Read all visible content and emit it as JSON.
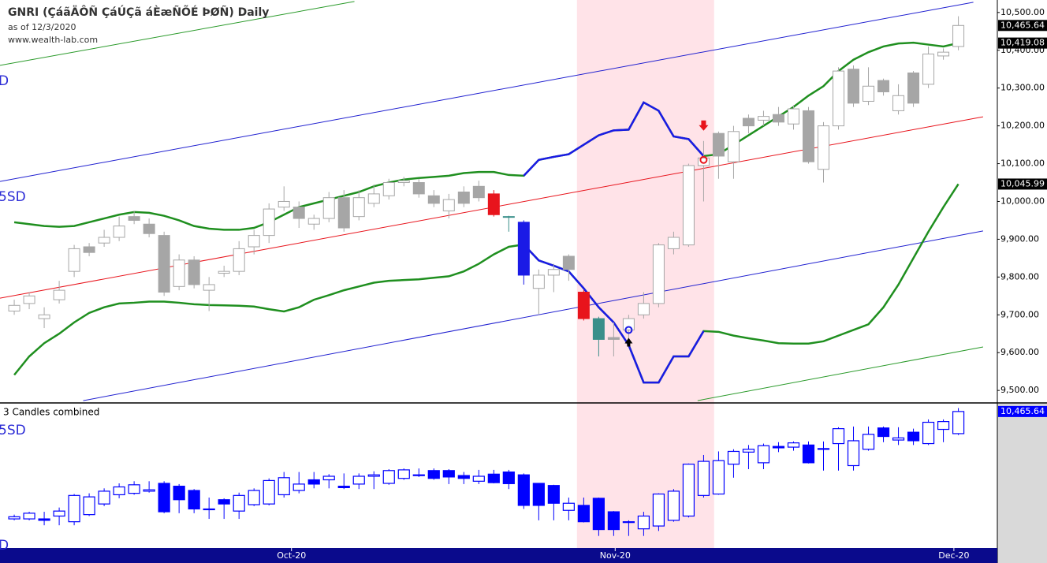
{
  "chart_data": {
    "type": "candlestick",
    "title": "GNRI (ÇáãÄÔÑ ÇáÚÇã áÈæÑÕÉ ÞØÑ) Daily",
    "subtitle": "as of 12/3/2020",
    "source": "www.wealth-lab.com",
    "channel_labels": [
      "D",
      "5SD"
    ],
    "xlim": [
      -0.95,
      65.6
    ],
    "xticks": [
      {
        "value": 18.5,
        "label": "Oct-20"
      },
      {
        "value": 40.1,
        "label": "Nov-20"
      },
      {
        "value": 62.7,
        "label": "Dec-20"
      }
    ],
    "ylim": [
      9469,
      10533
    ],
    "yticks": [
      {
        "value": 9500,
        "label": "9,500.00"
      },
      {
        "value": 9600,
        "label": "9,600.00"
      },
      {
        "value": 9700,
        "label": "9,700.00"
      },
      {
        "value": 9800,
        "label": "9,800.00"
      },
      {
        "value": 9900,
        "label": "9,900.00"
      },
      {
        "value": 10000,
        "label": "10,000.00"
      },
      {
        "value": 10100,
        "label": "10,100.00"
      },
      {
        "value": 10200,
        "label": "10,200.00"
      },
      {
        "value": 10300,
        "label": "10,300.00"
      },
      {
        "value": 10400,
        "label": "10,400.00"
      },
      {
        "value": 10500,
        "label": "10,500.00"
      }
    ],
    "shade": [
      37.55,
      46.7
    ],
    "shade_color": "#ffe3e8",
    "up_color": "#ffffff",
    "down_color": "#a6a6a6",
    "open": [
      9710,
      9730,
      9690,
      9740,
      9815,
      9880,
      9890,
      9905,
      9960,
      9940,
      9910,
      9775,
      9845,
      9765,
      9810,
      9815,
      9880,
      9910,
      9985,
      9985,
      9940,
      9955,
      10010,
      9960,
      9995,
      10015,
      10050,
      10050,
      10015,
      9975,
      10025,
      10040,
      10020,
      9960,
      9945,
      9770,
      9805,
      9855,
      9760,
      9690,
      9640,
      9660,
      9700,
      9730,
      9875,
      9885,
      10095,
      10180,
      10105,
      10220,
      10215,
      10230,
      10205,
      10240,
      10085,
      10200,
      10350,
      10265,
      10320,
      10240,
      10340,
      10310,
      10385,
      10410
    ],
    "high": [
      9740,
      9760,
      9720,
      9790,
      9885,
      9890,
      9925,
      9960,
      9975,
      9955,
      9920,
      9860,
      9855,
      9800,
      9830,
      9895,
      9925,
      9995,
      10040,
      10000,
      9965,
      10025,
      10030,
      10030,
      10045,
      10060,
      10065,
      10060,
      10030,
      10020,
      10040,
      10055,
      10030,
      9962,
      9950,
      9820,
      9835,
      9860,
      9765,
      9695,
      9680,
      9700,
      9760,
      9890,
      9920,
      10100,
      10160,
      10185,
      10200,
      10230,
      10240,
      10250,
      10255,
      10250,
      10210,
      10355,
      10360,
      10355,
      10325,
      10310,
      10345,
      10410,
      10405,
      10490
    ],
    "low": [
      9700,
      9715,
      9665,
      9730,
      9800,
      9855,
      9880,
      9895,
      9940,
      9905,
      9750,
      9765,
      9770,
      9710,
      9800,
      9805,
      9860,
      9890,
      9975,
      9930,
      9925,
      9945,
      9920,
      9950,
      9985,
      10005,
      10040,
      10010,
      9985,
      9955,
      9985,
      10000,
      9960,
      9920,
      9780,
      9700,
      9760,
      9790,
      9685,
      9590,
      9590,
      9625,
      9690,
      9720,
      9860,
      9880,
      10000,
      10060,
      10060,
      10180,
      10200,
      10200,
      10190,
      10100,
      10050,
      10190,
      10250,
      10255,
      10280,
      10230,
      10250,
      10300,
      10375,
      10400
    ],
    "close": [
      9725,
      9750,
      9700,
      9765,
      9875,
      9865,
      9905,
      9935,
      9950,
      9915,
      9760,
      9845,
      9780,
      9780,
      9815,
      9875,
      9910,
      9980,
      10000,
      9955,
      9955,
      10010,
      9930,
      10010,
      10020,
      10050,
      10055,
      10020,
      9995,
      10005,
      9995,
      10010,
      9965,
      9958,
      9805,
      9805,
      9820,
      9820,
      9690,
      9635,
      9635,
      9690,
      9730,
      9885,
      9905,
      10095,
      10115,
      10120,
      10185,
      10200,
      10225,
      10210,
      10245,
      10105,
      10200,
      10345,
      10260,
      10305,
      10290,
      10280,
      10260,
      10390,
      10395,
      10465.64
    ],
    "last_label": "10,465.64",
    "highlights": [
      {
        "index": 32,
        "color": "#e8141c"
      },
      {
        "index": 33,
        "color": "#3a8f8a"
      },
      {
        "index": 34,
        "color": "#1a1ae6"
      },
      {
        "index": 38,
        "color": "#e8141c"
      },
      {
        "index": 39,
        "color": "#3a8f8a"
      }
    ],
    "bands": [
      {
        "color": "#1f8f1f",
        "shade_color": "#1a1ae6",
        "value_label": "10,419.08",
        "values": [
          9945,
          9940,
          9935,
          9933,
          9935,
          9945,
          9955,
          9965,
          9972,
          9970,
          9962,
          9950,
          9935,
          9928,
          9925,
          9925,
          9930,
          9945,
          9965,
          9985,
          9995,
          10005,
          10015,
          10025,
          10040,
          10050,
          10058,
          10062,
          10065,
          10068,
          10075,
          10078,
          10078,
          10070,
          10068,
          10110,
          10118,
          10125,
          10150,
          10175,
          10188,
          10190,
          10262,
          10240,
          10172,
          10165,
          10120,
          10125,
          10150,
          10175,
          10200,
          10225,
          10250,
          10280,
          10305,
          10345,
          10375,
          10395,
          10410,
          10418,
          10420,
          10415,
          10410,
          10419.08
        ]
      },
      {
        "color": "#1f8f1f",
        "shade_color": "#1a1ae6",
        "value_label": "10,045.99",
        "values": [
          9541,
          9590,
          9625,
          9650,
          9680,
          9705,
          9720,
          9730,
          9732,
          9735,
          9735,
          9732,
          9728,
          9726,
          9725,
          9724,
          9722,
          9715,
          9709,
          9720,
          9740,
          9752,
          9765,
          9775,
          9785,
          9790,
          9792,
          9794,
          9798,
          9802,
          9815,
          9835,
          9860,
          9880,
          9886,
          9844,
          9830,
          9815,
          9770,
          9720,
          9680,
          9620,
          9521,
          9521,
          9590,
          9590,
          9657,
          9655,
          9645,
          9638,
          9632,
          9625,
          9624,
          9624,
          9630,
          9645,
          9660,
          9675,
          9720,
          9780,
          9850,
          9920,
          9985,
          10045.99
        ]
      }
    ],
    "lines": [
      {
        "color": "#e8141c",
        "from": [
          -0.95,
          9744
        ],
        "to": [
          64.65,
          10224
        ]
      },
      {
        "color": "#2020d0",
        "from": [
          -0.95,
          10053
        ],
        "to": [
          64.0,
          10527
        ]
      },
      {
        "color": "#2020d0",
        "from": [
          4.6,
          9473
        ],
        "to": [
          64.65,
          9922
        ]
      },
      {
        "color": "#2a9a2a",
        "from": [
          -0.95,
          10360
        ],
        "to": [
          22.7,
          10529
        ]
      },
      {
        "color": "#2a9a2a",
        "from": [
          45.6,
          9473
        ],
        "to": [
          64.65,
          9615
        ]
      }
    ],
    "signals": [
      {
        "kind": "sell",
        "at": 46,
        "price": 10110,
        "color": "#e8141c"
      },
      {
        "kind": "buy",
        "at": 41,
        "price": 9660,
        "color": "#1a1ae6"
      }
    ],
    "lower_pane": {
      "title": "3 Candles combined",
      "combine": 3,
      "ylim": [
        9505,
        10515
      ],
      "color": "#0000ff",
      "channel_labels": [
        "5SD",
        "D"
      ],
      "last_label": "10,465.64"
    }
  }
}
